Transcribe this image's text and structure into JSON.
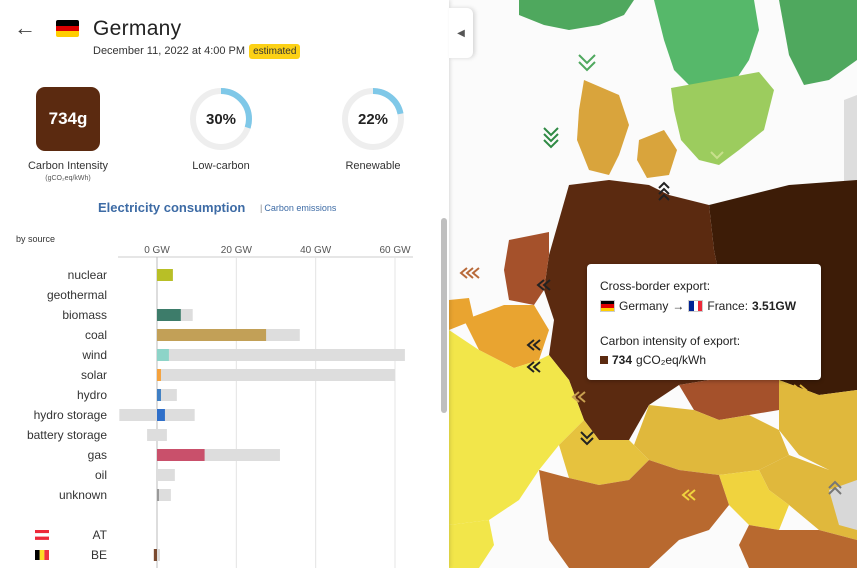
{
  "zone": {
    "name": "Germany",
    "datetime": "December 11, 2022 at 4:00 PM",
    "badge": "estimated"
  },
  "metrics": {
    "carbon_intensity_value": "734g",
    "carbon_intensity_label": "Carbon Intensity",
    "carbon_intensity_unit": "(gCO₂eq/kWh)",
    "low_carbon_value": "30%",
    "low_carbon_fraction": 0.3,
    "low_carbon_label": "Low-carbon",
    "renewable_value": "22%",
    "renewable_fraction": 0.22,
    "renewable_label": "Renewable"
  },
  "tabs": {
    "consumption": "Electricity consumption",
    "emissions": "Carbon emissions"
  },
  "by_source_label": "by source",
  "colors": {
    "accent": "#3d6ba5",
    "ring": "#7fc8e8",
    "ring_bg": "#eeeeee",
    "ci": "#5b2a10",
    "capacity": "#dddddd"
  },
  "chart_data": {
    "type": "bar",
    "axis_ticks": [
      "0 GW",
      "20 GW",
      "40 GW",
      "60 GW"
    ],
    "tick_values": [
      0,
      20,
      40,
      60
    ],
    "xlim": [
      -9.5,
      62.5
    ],
    "sources": [
      {
        "name": "nuclear",
        "production": 4,
        "capacity": 4,
        "color": "#b8bf26"
      },
      {
        "name": "geothermal",
        "production": 0,
        "capacity": 0,
        "color": "#d46a00"
      },
      {
        "name": "biomass",
        "production": 6,
        "capacity": 9,
        "color": "#3d7c6a"
      },
      {
        "name": "coal",
        "production": 27.5,
        "capacity": 36,
        "color": "#c2a057"
      },
      {
        "name": "wind",
        "production": 3,
        "capacity": 62.5,
        "color": "#8dd4c8"
      },
      {
        "name": "solar",
        "production": 1,
        "capacity": 60,
        "color": "#f5a23d"
      },
      {
        "name": "hydro",
        "production": 1,
        "capacity": 5,
        "color": "#3f7fc4"
      },
      {
        "name": "hydro storage",
        "production": 2,
        "capacity": 9.5,
        "negative": -9.5,
        "color": "#2f6fc9"
      },
      {
        "name": "battery storage",
        "production": 0,
        "capacity": 2.5,
        "negative": -2.5,
        "color": "#8a52a3"
      },
      {
        "name": "gas",
        "production": 12,
        "capacity": 31,
        "color": "#c9506b"
      },
      {
        "name": "oil",
        "production": 0,
        "capacity": 4.5,
        "color": "#8b6651"
      },
      {
        "name": "unknown",
        "production": 0.5,
        "capacity": 3.5,
        "color": "#999999"
      }
    ],
    "exchanges": [
      {
        "name": "AT",
        "value": 0
      },
      {
        "name": "BE",
        "value": -0.8
      }
    ]
  },
  "tooltip": {
    "title": "Cross-border export:",
    "from": "Germany",
    "arrow": "→",
    "to": "France:",
    "value": "3.51GW",
    "ci_title": "Carbon intensity of export:",
    "ci_value": "734",
    "ci_unit": "gCO₂eq/kWh"
  }
}
